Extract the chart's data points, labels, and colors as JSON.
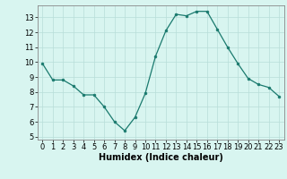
{
  "x": [
    0,
    1,
    2,
    3,
    4,
    5,
    6,
    7,
    8,
    9,
    10,
    11,
    12,
    13,
    14,
    15,
    16,
    17,
    18,
    19,
    20,
    21,
    22,
    23
  ],
  "y": [
    9.9,
    8.8,
    8.8,
    8.4,
    7.8,
    7.8,
    7.0,
    6.0,
    5.4,
    6.3,
    7.9,
    10.4,
    12.1,
    13.2,
    13.1,
    13.4,
    13.4,
    12.2,
    11.0,
    9.9,
    8.9,
    8.5,
    8.3,
    7.7
  ],
  "line_color": "#1a7a6e",
  "marker": "o",
  "marker_size": 2.0,
  "bg_color": "#d8f5f0",
  "grid_color": "#b8ddd8",
  "xlabel": "Humidex (Indice chaleur)",
  "xlim": [
    -0.5,
    23.5
  ],
  "ylim": [
    4.8,
    13.8
  ],
  "yticks": [
    5,
    6,
    7,
    8,
    9,
    10,
    11,
    12,
    13
  ],
  "xticks": [
    0,
    1,
    2,
    3,
    4,
    5,
    6,
    7,
    8,
    9,
    10,
    11,
    12,
    13,
    14,
    15,
    16,
    17,
    18,
    19,
    20,
    21,
    22,
    23
  ],
  "tick_fontsize": 6.0,
  "label_fontsize": 7.0,
  "spine_color": "#888888"
}
